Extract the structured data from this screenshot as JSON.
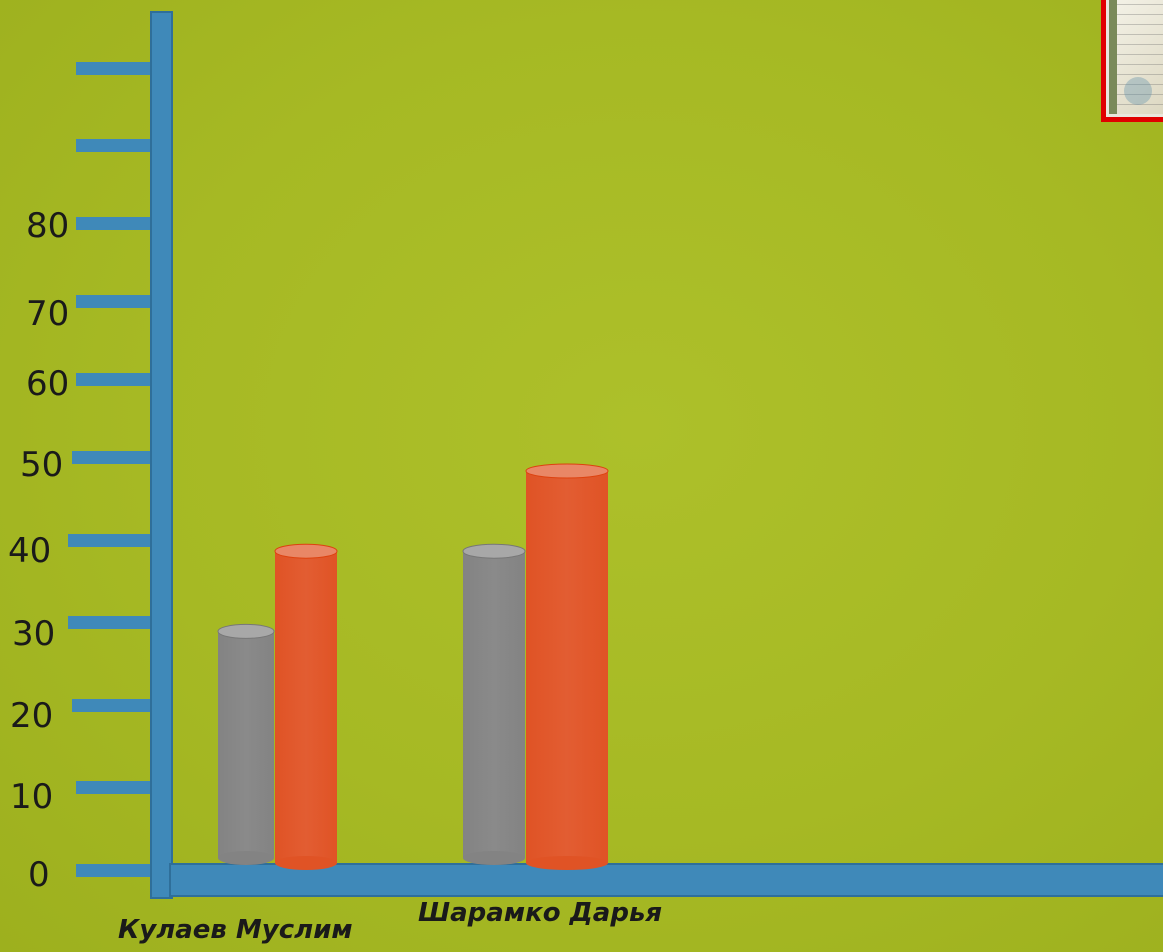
{
  "chart_data": {
    "type": "bar",
    "categories": [
      "Кулаев Муслим",
      "Шарамко Дарья"
    ],
    "series": [
      {
        "values": [
          30,
          40
        ],
        "color": "#838383"
      },
      {
        "values": [
          40,
          50
        ],
        "color": "#e05325"
      }
    ],
    "ylim": [
      0,
      100
    ],
    "y_ticks": [
      0,
      10,
      20,
      30,
      40,
      50,
      60,
      70,
      80,
      90,
      100
    ],
    "y_tick_labels": [
      "0",
      "10",
      "20",
      "30",
      "40",
      "50",
      "60",
      "70",
      "80",
      "",
      ""
    ],
    "title": "",
    "xlabel": "",
    "ylabel": "",
    "bar_style": "cylinder",
    "axis_color": "#3f89b9",
    "legend": "none"
  },
  "decor": {
    "thumbnail": "certificate-thumbnail"
  }
}
